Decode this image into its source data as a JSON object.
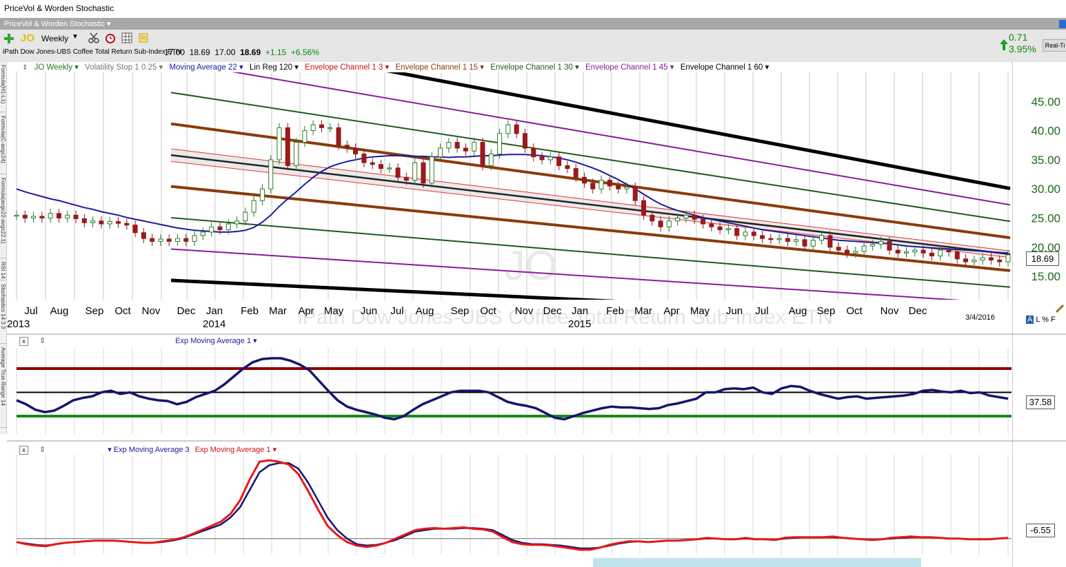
{
  "window": {
    "title": "PriceVol & Worden Stochastic",
    "layout": "PriceVol & Worden Stochastic ▾"
  },
  "toolbar": {
    "symbol": "JO",
    "period": "Weekly",
    "security_name": "iPath Dow Jones-UBS Coffee Total Return Sub-Index ETN",
    "open": "17.00",
    "high": "18.69",
    "low": "17.00",
    "last": "18.69",
    "change": "+1.15",
    "change_pct": "+6.56%",
    "side_change": "0.71",
    "side_change_pct": "3.95%",
    "realtime": "Real-Ti",
    "icons": [
      "add-icon",
      "scissors-icon",
      "alarm-icon",
      "grid-icon",
      "note-icon"
    ]
  },
  "sidetabs": [
    "Formula(H1-L1)",
    "Formula(C-avgc24)",
    "Formula(avgc22-avgc22.1)",
    "RSI 14",
    "Stochastics 14 3 3",
    "Average True Range 14"
  ],
  "price_legend": [
    {
      "label": "JO Weekly ▾",
      "color": "#1f7a1f"
    },
    {
      "label": "Volatility Stop 1 0.25 ▾",
      "color": "#777777"
    },
    {
      "label": "Moving Average 22 ▾",
      "color": "#1a1aa0"
    },
    {
      "label": "Lin Reg 120 ▾",
      "color": "#000000"
    },
    {
      "label": "Envelope Channel 1 3 ▾",
      "color": "#d01010"
    },
    {
      "label": "Envelope Channel 1 15 ▾",
      "color": "#8a3b0a"
    },
    {
      "label": "Envelope Channel 1 30 ▾",
      "color": "#1a5a1a"
    },
    {
      "label": "Envelope Channel 1 45 ▾",
      "color": "#8a1a9a"
    },
    {
      "label": "Envelope Channel 1 60 ▾",
      "color": "#000000"
    }
  ],
  "watermark": {
    "symbol": "JO",
    "name": "iPath Dow Jones-UBS Coffee Total Return Sub-Index ETN"
  },
  "date_label": "3/4/2016",
  "axis_buttons": "A L % F",
  "panel2": {
    "close": "x",
    "legend": "Exp Moving Average 1 ▾",
    "value": "37.58"
  },
  "panel3": {
    "close": "x",
    "legend_a": "Exp Moving Average 3",
    "legend_b": "Exp Moving Average 1",
    "value": "-6.55"
  },
  "chart_data": [
    {
      "type": "candlestick",
      "title": "JO Weekly",
      "price_label": "18.69",
      "y_ticks": [
        "45.00",
        "40.00",
        "35.00",
        "30.00",
        "25.00",
        "20.00",
        "15.00"
      ],
      "y_tick_values": [
        45,
        40,
        35,
        30,
        25,
        20,
        15
      ],
      "ylim": [
        11,
        50
      ],
      "month_labels": [
        "Jul",
        "Aug",
        "Sep",
        "Oct",
        "Nov",
        "Dec",
        "Jan",
        "Feb",
        "Mar",
        "Apr",
        "May",
        "Jun",
        "Jul",
        "Aug",
        "Sep",
        "Oct",
        "Nov",
        "Dec",
        "Jan",
        "Feb",
        "Mar",
        "Apr",
        "May",
        "Jun",
        "Jul",
        "Aug",
        "Sep",
        "Oct",
        "Nov",
        "Dec"
      ],
      "year_labels": [
        "2013",
        "2014",
        "2015"
      ],
      "closes": [
        25.5,
        25.0,
        25.3,
        25.0,
        25.8,
        25.0,
        25.5,
        24.9,
        24.2,
        24.5,
        24.0,
        24.4,
        24.1,
        23.8,
        22.5,
        21.5,
        21.0,
        21.4,
        21.0,
        21.5,
        21.0,
        22.0,
        22.6,
        23.5,
        23.0,
        24.0,
        24.5,
        26.0,
        28.0,
        30.0,
        35.0,
        40.5,
        34.0,
        38.0,
        40.0,
        41.0,
        40.5,
        40.5,
        37.5,
        37.0,
        36.0,
        34.5,
        34.2,
        33.5,
        33.6,
        32.0,
        31.5,
        34.5,
        31.0,
        35.5,
        37.0,
        38.0,
        37.0,
        36.5,
        38.0,
        34.0,
        36.0,
        39.5,
        41.0,
        39.5,
        37.0,
        35.5,
        35.0,
        35.5,
        34.0,
        33.5,
        32.0,
        31.0,
        30.0,
        31.5,
        30.5,
        30.0,
        30.3,
        28.0,
        25.5,
        24.5,
        23.5,
        24.5,
        25.0,
        25.5,
        24.8,
        24.0,
        23.5,
        23.0,
        23.2,
        22.0,
        22.6,
        22.0,
        21.5,
        21.3,
        21.5,
        21.0,
        21.3,
        20.2,
        21.2,
        22.0,
        20.0,
        19.5,
        19.0,
        19.3,
        20.2,
        20.5,
        21.0,
        19.5,
        19.0,
        19.2,
        19.5,
        19.0,
        18.5,
        19.5,
        19.2,
        18.0,
        17.5,
        17.8,
        18.2,
        17.8,
        17.5,
        18.69
      ],
      "series": [
        {
          "name": "Moving Average 22",
          "values": [
            30,
            29.5,
            29.1,
            28.7,
            28.3,
            28.0,
            27.6,
            27.2,
            26.8,
            26.5,
            26.1,
            25.8,
            25.5,
            25.1,
            24.8,
            24.5,
            24.2,
            23.9,
            23.6,
            23.3,
            23.1,
            22.9,
            22.8,
            22.7,
            22.6,
            22.6,
            22.7,
            22.9,
            23.4,
            24.3,
            25.5,
            27.0,
            28.3,
            29.5,
            30.8,
            32.0,
            33.0,
            33.8,
            34.3,
            34.7,
            35.0,
            35.3,
            35.5,
            35.6,
            35.7,
            35.7,
            35.7,
            35.6,
            35.6,
            35.5,
            35.5,
            35.4,
            35.5,
            35.5,
            35.6,
            35.7,
            35.7,
            35.8,
            35.9,
            35.9,
            35.9,
            35.8,
            35.7,
            35.5,
            35.3,
            35.0,
            34.6,
            34.1,
            33.6,
            33.0,
            32.3,
            31.6,
            30.8,
            30.0,
            29.1,
            28.2,
            27.4,
            26.8,
            26.3,
            25.9,
            25.5,
            25.1,
            24.8,
            24.5,
            24.2,
            23.9,
            23.6,
            23.3,
            23.0,
            22.8,
            22.6,
            22.4,
            22.2,
            22.0,
            21.8,
            21.6,
            21.4,
            21.2,
            21.1,
            21.0,
            20.9,
            20.8,
            20.7,
            20.6,
            20.4,
            20.2,
            20.1,
            20.0,
            19.9,
            19.8,
            19.7,
            19.6,
            19.5,
            19.4,
            19.3,
            19.2,
            19.1,
            19.0
          ]
        },
        {
          "name": "Lin Reg 120",
          "start": 35.8,
          "end": 18.8
        },
        {
          "name": "Envelope Channel 1 3",
          "offsets_pct": [
            3,
            -3
          ]
        },
        {
          "name": "Envelope Channel 1 15",
          "offsets_pct": [
            15,
            -15
          ]
        },
        {
          "name": "Envelope Channel 1 30",
          "offsets_pct": [
            30,
            -30
          ]
        },
        {
          "name": "Envelope Channel 1 45",
          "offsets_pct": [
            45,
            -45
          ]
        },
        {
          "name": "Envelope Channel 1 60",
          "offsets_pct": [
            60,
            -60
          ]
        }
      ]
    },
    {
      "type": "line",
      "title": "Exp Moving Average 1",
      "ylim": [
        0,
        100
      ],
      "reference_levels": [
        {
          "value": 80,
          "color": "#8b0000"
        },
        {
          "value": 50,
          "color": "#000000"
        },
        {
          "value": 20,
          "color": "#1a8a1a"
        }
      ],
      "values": [
        40,
        35,
        28,
        25,
        27,
        33,
        40,
        43,
        45,
        50,
        52,
        48,
        50,
        45,
        42,
        40,
        39,
        35,
        38,
        44,
        48,
        52,
        60,
        70,
        80,
        88,
        92,
        93,
        93,
        90,
        85,
        78,
        65,
        52,
        40,
        32,
        28,
        25,
        22,
        18,
        16,
        20,
        28,
        35,
        40,
        45,
        50,
        52,
        52,
        52,
        50,
        44,
        38,
        35,
        33,
        30,
        24,
        18,
        16,
        20,
        24,
        27,
        30,
        32,
        31,
        31,
        30,
        29,
        30,
        34,
        36,
        39,
        42,
        50,
        50,
        54,
        55,
        54,
        56,
        50,
        48,
        55,
        58,
        57,
        52,
        48,
        45,
        42,
        44,
        45,
        42,
        43,
        44,
        45,
        46,
        48,
        52,
        53,
        51,
        50,
        52,
        49,
        50,
        46,
        44,
        42
      ]
    },
    {
      "type": "line",
      "title": "Exp Moving Average 3 / Exp Moving Average 1",
      "series": [
        {
          "name": "Exp Moving Average 3",
          "values": [
            -5,
            -7,
            -9,
            -10,
            -8,
            -6,
            -5,
            -4,
            -3,
            -3,
            -3,
            -4,
            -5,
            -6,
            -6,
            -5,
            -3,
            0,
            5,
            10,
            15,
            20,
            30,
            45,
            70,
            95,
            105,
            108,
            108,
            100,
            80,
            55,
            30,
            12,
            0,
            -8,
            -10,
            -9,
            -6,
            -2,
            4,
            10,
            12,
            14,
            14,
            14,
            15,
            15,
            14,
            12,
            5,
            -2,
            -6,
            -8,
            -8,
            -9,
            -10,
            -12,
            -14,
            -14,
            -13,
            -10,
            -7,
            -5,
            -4,
            -5,
            -4,
            -3,
            -3,
            -2,
            -1,
            0,
            0,
            -1,
            -1,
            0,
            -1,
            -1,
            -2,
            0,
            1,
            2,
            2,
            2,
            2,
            1,
            0,
            -1,
            -2,
            -1,
            0,
            1,
            2,
            2,
            2,
            1,
            0,
            0,
            -1,
            -1,
            -1,
            0,
            1
          ]
        },
        {
          "name": "Exp Moving Average 1",
          "values": [
            -5,
            -8,
            -10,
            -11,
            -8,
            -6,
            -5,
            -4,
            -3,
            -3,
            -3,
            -4,
            -5,
            -6,
            -6,
            -4,
            -2,
            1,
            6,
            12,
            18,
            24,
            35,
            55,
            85,
            110,
            112,
            110,
            106,
            92,
            68,
            42,
            18,
            5,
            -5,
            -10,
            -12,
            -10,
            -6,
            0,
            6,
            12,
            14,
            15,
            14,
            15,
            16,
            14,
            13,
            10,
            2,
            -5,
            -8,
            -9,
            -9,
            -10,
            -12,
            -14,
            -16,
            -16,
            -13,
            -9,
            -6,
            -4,
            -4,
            -5,
            -4,
            -3,
            -3,
            -2,
            -1,
            1,
            0,
            -1,
            -1,
            1,
            -1,
            -1,
            -2,
            1,
            2,
            2,
            2,
            2,
            3,
            1,
            0,
            -1,
            -2,
            -1,
            1,
            2,
            3,
            2,
            2,
            1,
            0,
            0,
            -1,
            -1,
            -1,
            0,
            1
          ]
        }
      ],
      "zero_line": 0,
      "ylim": [
        -18,
        120
      ]
    }
  ]
}
